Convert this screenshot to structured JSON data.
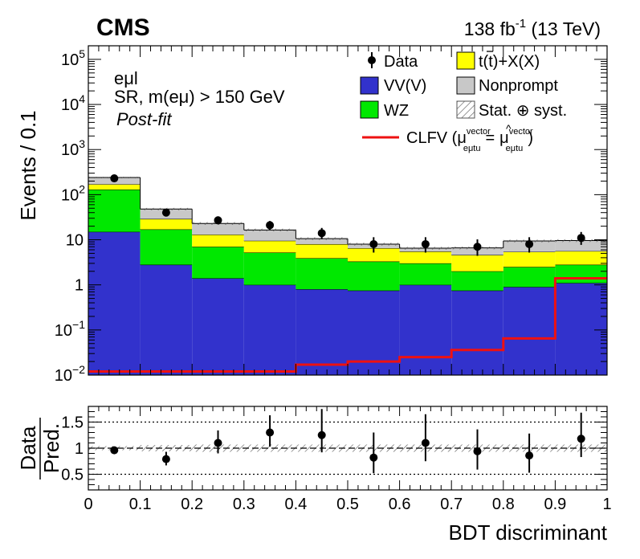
{
  "header": {
    "experiment": "CMS",
    "luminosity_value": "138",
    "luminosity_unit": "fb",
    "luminosity_exp": "-1",
    "energy": "(13 TeV)"
  },
  "labels": {
    "channel": "eμl",
    "region": "SR, m(eμ) > 150 GeV",
    "fit": "Post-fit"
  },
  "colors": {
    "vv": "#3232cc",
    "wz": "#00e800",
    "ttx": "#ffff00",
    "nonprompt": "#c8c8c8",
    "clfv": "#ee1111",
    "data": "#000000"
  },
  "legend": {
    "data": "Data",
    "ttx_a": "t(",
    "ttx_t": "t",
    "ttx_b": ")+X(X)",
    "vv": "VV(V)",
    "nonprompt": "Nonprompt",
    "wz": "WZ",
    "unc_a": "Stat.",
    "unc_op": "⊕",
    "unc_b": "syst.",
    "clfv_a": "CLFV (",
    "clfv_mu": "μ",
    "clfv_sup": "vector",
    "clfv_sub": "eμtu",
    "clfv_eq": "=",
    "clfv_end": ")"
  },
  "chart_data": [
    {
      "type": "stacked histogram",
      "xlabel": "BDT discriminant",
      "ylabel": "Events / 0.1",
      "yscale": "log",
      "xlim": [
        0,
        1
      ],
      "ylim": [
        0.01,
        200000
      ],
      "y_ticks": [
        {
          "base": "10",
          "exp": "−2"
        },
        {
          "base": "10",
          "exp": "−1"
        },
        {
          "base": "1",
          "exp": ""
        },
        {
          "base": "10",
          "exp": ""
        },
        {
          "base": "10",
          "exp": "2"
        },
        {
          "base": "10",
          "exp": "3"
        },
        {
          "base": "10",
          "exp": "4"
        },
        {
          "base": "10",
          "exp": "5"
        }
      ],
      "y_tick_values": [
        0.01,
        0.1,
        1,
        10,
        100,
        1000,
        10000,
        100000
      ],
      "bin_edges": [
        0,
        0.1,
        0.2,
        0.3,
        0.4,
        0.5,
        0.6,
        0.7,
        0.8,
        0.9,
        1.0
      ],
      "x_tick_labels": [
        "0",
        "0.1",
        "0.2",
        "0.3",
        "0.4",
        "0.5",
        "0.6",
        "0.7",
        "0.8",
        "0.9",
        "1"
      ],
      "stack": [
        {
          "name": "VV(V)",
          "values": [
            15,
            2.8,
            1.4,
            1.0,
            0.8,
            0.75,
            1.0,
            0.75,
            0.9,
            1.1
          ]
        },
        {
          "name": "WZ",
          "values": [
            115,
            14.2,
            5.6,
            4.2,
            3.1,
            2.55,
            2.0,
            1.25,
            1.6,
            1.7
          ]
        },
        {
          "name": "t(t̄)+X(X)",
          "values": [
            40,
            12,
            6,
            4.3,
            4.1,
            3.2,
            2.5,
            2.6,
            2.9,
            2.8
          ]
        },
        {
          "name": "Nonprompt",
          "values": [
            70,
            19,
            10,
            7,
            2.6,
            1.5,
            1.0,
            2.0,
            4.0,
            4.0
          ]
        }
      ],
      "signal": {
        "name": "CLFV",
        "values": [
          0.012,
          0.012,
          0.012,
          0.012,
          0.017,
          0.02,
          0.025,
          0.036,
          0.065,
          1.4
        ]
      },
      "data": {
        "name": "Data",
        "x": [
          0.05,
          0.15,
          0.25,
          0.35,
          0.45,
          0.55,
          0.65,
          0.75,
          0.85,
          0.95
        ],
        "values": [
          230,
          40,
          27,
          21,
          14,
          8,
          8,
          7,
          8,
          11
        ],
        "err_low": [
          15,
          6,
          5,
          4.5,
          3.7,
          2.8,
          2.8,
          2.6,
          2.8,
          3.3
        ],
        "err_high": [
          16,
          7,
          6,
          5.1,
          4.3,
          3.4,
          3.4,
          3.2,
          3.4,
          3.9
        ]
      }
    },
    {
      "type": "ratio",
      "xlabel": "BDT discriminant",
      "ylabel_num": "Data",
      "ylabel_den": "Pred.",
      "xlim": [
        0,
        1
      ],
      "ylim": [
        0.2,
        1.8
      ],
      "y_ticks": [
        0.5,
        1,
        1.5
      ],
      "y_tick_labels": [
        "0.5",
        "1",
        "1.5"
      ],
      "x": [
        0.05,
        0.15,
        0.25,
        0.35,
        0.45,
        0.55,
        0.65,
        0.75,
        0.85,
        0.95
      ],
      "values": [
        0.96,
        0.79,
        1.1,
        1.3,
        1.25,
        0.82,
        1.1,
        0.94,
        0.86,
        1.18
      ],
      "err_low": [
        0.06,
        0.12,
        0.2,
        0.27,
        0.33,
        0.3,
        0.35,
        0.35,
        0.33,
        0.35
      ],
      "err_high": [
        0.06,
        0.14,
        0.24,
        0.33,
        0.5,
        0.48,
        0.55,
        0.42,
        0.42,
        0.5
      ],
      "unc_band": [
        0.04,
        0.06,
        0.07,
        0.07,
        0.07,
        0.07,
        0.07,
        0.07,
        0.07,
        0.07
      ]
    }
  ]
}
